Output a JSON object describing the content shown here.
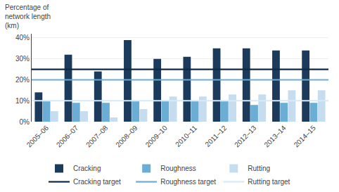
{
  "chart_data": {
    "type": "bar",
    "ylabel": "Percentage of\nnetwork length\n(km)",
    "categories": [
      "2005–06",
      "2006–07",
      "2007–08",
      "2008–09",
      "2009–10",
      "2010–11",
      "2011–12",
      "2012–13",
      "2013–14",
      "2014–15"
    ],
    "series": [
      {
        "name": "Cracking",
        "type": "bar",
        "color": "#1b3a5c",
        "values": [
          14,
          32,
          24,
          39,
          30,
          31,
          35,
          35,
          34,
          34
        ]
      },
      {
        "name": "Roughness",
        "type": "bar",
        "color": "#6aaed6",
        "values": [
          10,
          9,
          9,
          10,
          10,
          10,
          10,
          8,
          9,
          9
        ]
      },
      {
        "name": "Rutting",
        "type": "bar",
        "color": "#c6dcef",
        "values": [
          5,
          5,
          2,
          6,
          12,
          12,
          13,
          13,
          15,
          15
        ]
      },
      {
        "name": "Cracking target",
        "type": "hline",
        "color": "#0d2b45",
        "value": 25
      },
      {
        "name": "Roughness target",
        "type": "hline",
        "color": "#6aaed6",
        "value": 20
      },
      {
        "name": "Rutting target",
        "type": "hline",
        "color": "#d6eaf8",
        "value": 10
      }
    ],
    "ylim": [
      0,
      42
    ],
    "yticks": [
      {
        "value": 0,
        "label": "0%"
      },
      {
        "value": 10,
        "label": "10%"
      },
      {
        "value": 20,
        "label": "20%"
      },
      {
        "value": 30,
        "label": "30%"
      },
      {
        "value": 40,
        "label": "40%"
      }
    ],
    "grid": true,
    "legend": "bottom"
  }
}
